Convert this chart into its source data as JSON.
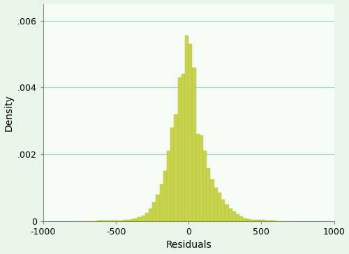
{
  "xlim": [
    -1000,
    1000
  ],
  "ylim": [
    0,
    0.0065
  ],
  "yticks": [
    0,
    0.002,
    0.004,
    0.006
  ],
  "ytick_labels": [
    "0",
    ".002",
    ".004",
    ".006"
  ],
  "xticks": [
    -1000,
    -500,
    0,
    500,
    1000
  ],
  "xlabel": "Residuals",
  "ylabel": "Density",
  "bar_color": "#c8d44e",
  "bar_edge_color": "#b0bc38",
  "fig_bg_color": "#e8f5e8",
  "plot_bg_color": "#f5fcf5",
  "grid_color": "#9ed4cc",
  "grid_linewidth": 0.8,
  "bin_width": 25,
  "bins_left": [
    -800,
    -775,
    -750,
    -725,
    -700,
    -675,
    -650,
    -625,
    -600,
    -575,
    -550,
    -525,
    -500,
    -475,
    -450,
    -425,
    -400,
    -375,
    -350,
    -325,
    -300,
    -275,
    -250,
    -225,
    -200,
    -175,
    -150,
    -125,
    -100,
    -75,
    -50,
    -25,
    0,
    25,
    50,
    75,
    100,
    125,
    150,
    175,
    200,
    225,
    250,
    275,
    300,
    325,
    350,
    375,
    400,
    425,
    450,
    475,
    500,
    525,
    550,
    575,
    600,
    625,
    650,
    675
  ],
  "bin_heights": [
    4e-06,
    4e-06,
    4e-06,
    4e-06,
    6e-06,
    6e-06,
    6e-06,
    8e-06,
    1e-05,
    1e-05,
    1.2e-05,
    1.5e-05,
    1.8e-05,
    2.2e-05,
    3e-05,
    4e-05,
    5.5e-05,
    8e-05,
    0.00012,
    0.00017,
    0.00025,
    0.00038,
    0.00056,
    0.0008,
    0.0011,
    0.0015,
    0.0021,
    0.0028,
    0.0032,
    0.0043,
    0.0044,
    0.00555,
    0.0053,
    0.0046,
    0.0026,
    0.00256,
    0.0021,
    0.00158,
    0.00125,
    0.001,
    0.00085,
    0.00064,
    0.0005,
    0.00038,
    0.00028,
    0.0002,
    0.00014,
    9e-05,
    6.5e-05,
    4.5e-05,
    3.5e-05,
    3e-05,
    3e-05,
    2.2e-05,
    1e-05,
    8e-06,
    5e-06,
    4e-06,
    4e-06,
    3e-06
  ],
  "spine_color": "#888888",
  "tick_label_fontsize": 9,
  "axis_label_fontsize": 10
}
